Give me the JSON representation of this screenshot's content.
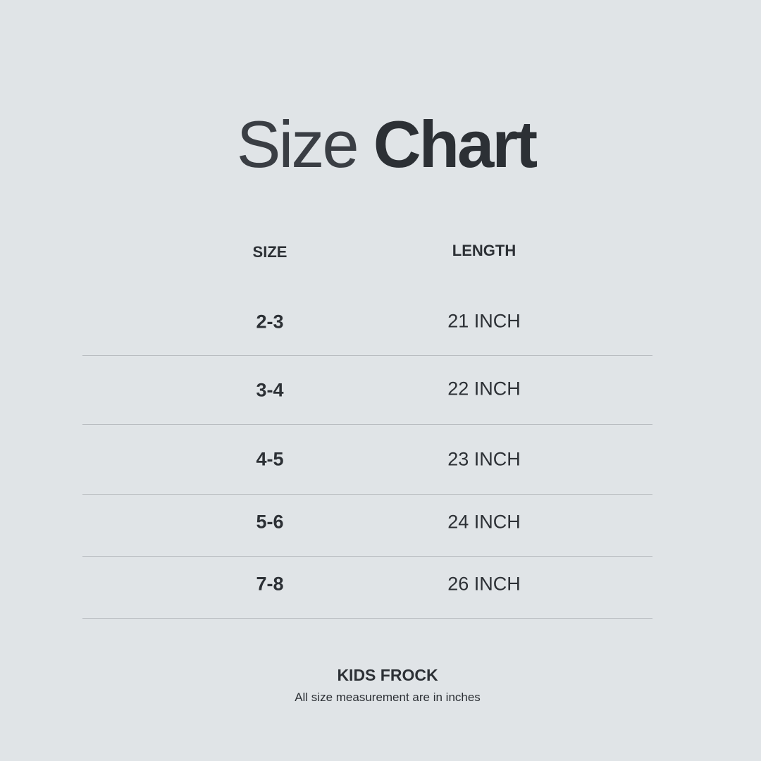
{
  "title": {
    "light": "Size",
    "bold": "Chart"
  },
  "table": {
    "headers": [
      "SIZE",
      "LENGTH"
    ],
    "rows": [
      {
        "size": "2-3",
        "length": "21 INCH"
      },
      {
        "size": "3-4",
        "length": "22 INCH"
      },
      {
        "size": "4-5",
        "length": "23 INCH"
      },
      {
        "size": "5-6",
        "length": "24 INCH"
      },
      {
        "size": "7-8",
        "length": "26 INCH"
      }
    ]
  },
  "footer": {
    "product": "KIDS FROCK",
    "note": "All size measurement are in inches"
  },
  "colors": {
    "background": "#e0e4e7",
    "text": "#2c3035",
    "divider": "#b9bdc1"
  }
}
